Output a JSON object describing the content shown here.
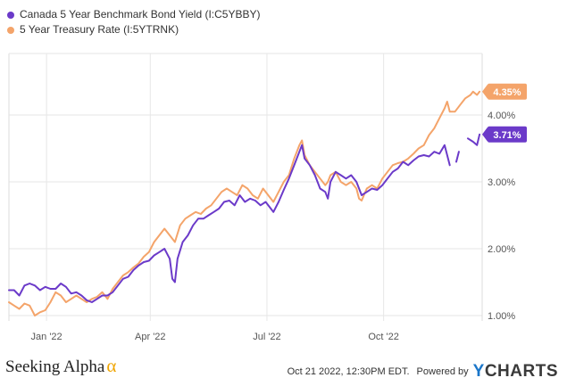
{
  "chart_data": {
    "type": "line",
    "x_ticks": [
      "Jan '22",
      "Apr '22",
      "Jul '22",
      "Oct '22"
    ],
    "y_ticks": [
      "1.00%",
      "2.00%",
      "3.00%",
      "4.00%"
    ],
    "ylim": [
      0.92,
      4.92
    ],
    "grid": true,
    "legend_position": "top-left",
    "series": [
      {
        "name": "Canada 5 Year Benchmark Bond Yield (I:C5YBBY)",
        "color": "#6b3ac9",
        "end_label": "3.71%",
        "points": [
          [
            0,
            1.38
          ],
          [
            4,
            1.38
          ],
          [
            8,
            1.3
          ],
          [
            12,
            1.45
          ],
          [
            16,
            1.48
          ],
          [
            20,
            1.45
          ],
          [
            24,
            1.38
          ],
          [
            28,
            1.43
          ],
          [
            32,
            1.4
          ],
          [
            36,
            1.4
          ],
          [
            40,
            1.48
          ],
          [
            44,
            1.43
          ],
          [
            48,
            1.33
          ],
          [
            52,
            1.35
          ],
          [
            56,
            1.3
          ],
          [
            60,
            1.23
          ],
          [
            64,
            1.2
          ],
          [
            68,
            1.25
          ],
          [
            72,
            1.3
          ],
          [
            76,
            1.3
          ],
          [
            80,
            1.35
          ],
          [
            84,
            1.45
          ],
          [
            88,
            1.55
          ],
          [
            92,
            1.58
          ],
          [
            96,
            1.68
          ],
          [
            100,
            1.75
          ],
          [
            104,
            1.8
          ],
          [
            108,
            1.82
          ],
          [
            112,
            1.9
          ],
          [
            116,
            1.95
          ],
          [
            120,
            2.0
          ],
          [
            124,
            1.85
          ],
          [
            126,
            1.55
          ],
          [
            128,
            1.5
          ],
          [
            130,
            1.85
          ],
          [
            134,
            2.1
          ],
          [
            138,
            2.2
          ],
          [
            142,
            2.35
          ],
          [
            146,
            2.45
          ],
          [
            150,
            2.45
          ],
          [
            154,
            2.5
          ],
          [
            158,
            2.55
          ],
          [
            162,
            2.6
          ],
          [
            166,
            2.7
          ],
          [
            170,
            2.72
          ],
          [
            174,
            2.65
          ],
          [
            178,
            2.8
          ],
          [
            182,
            2.7
          ],
          [
            186,
            2.75
          ],
          [
            190,
            2.72
          ],
          [
            194,
            2.65
          ],
          [
            198,
            2.7
          ],
          [
            202,
            2.6
          ],
          [
            204,
            2.55
          ],
          [
            208,
            2.7
          ],
          [
            212,
            2.88
          ],
          [
            216,
            3.05
          ],
          [
            220,
            3.25
          ],
          [
            224,
            3.45
          ],
          [
            226,
            3.55
          ],
          [
            228,
            3.35
          ],
          [
            232,
            3.25
          ],
          [
            236,
            3.1
          ],
          [
            240,
            2.9
          ],
          [
            244,
            2.85
          ],
          [
            246,
            2.75
          ],
          [
            248,
            3.0
          ],
          [
            252,
            3.15
          ],
          [
            256,
            3.1
          ],
          [
            260,
            3.05
          ],
          [
            264,
            3.1
          ],
          [
            268,
            3.0
          ],
          [
            270,
            2.9
          ],
          [
            272,
            2.8
          ],
          [
            276,
            2.85
          ],
          [
            280,
            2.9
          ],
          [
            284,
            2.88
          ],
          [
            288,
            2.95
          ],
          [
            292,
            3.05
          ],
          [
            296,
            3.15
          ],
          [
            300,
            3.2
          ],
          [
            304,
            3.3
          ],
          [
            308,
            3.25
          ],
          [
            312,
            3.32
          ],
          [
            316,
            3.38
          ],
          [
            320,
            3.4
          ],
          [
            324,
            3.38
          ],
          [
            328,
            3.45
          ],
          [
            332,
            3.42
          ],
          [
            336,
            3.55
          ],
          [
            338,
            3.4
          ],
          [
            340,
            3.25
          ],
          [
            341,
            null
          ],
          [
            345,
            3.3
          ],
          [
            347,
            3.45
          ],
          [
            349,
            null
          ],
          [
            354,
            3.65
          ],
          [
            358,
            3.6
          ],
          [
            361,
            3.55
          ],
          [
            363,
            3.71
          ]
        ]
      },
      {
        "name": "5 Year Treasury Rate (I:5YTRNK)",
        "color": "#f4a46a",
        "end_label": "4.35%",
        "points": [
          [
            0,
            1.2
          ],
          [
            4,
            1.15
          ],
          [
            8,
            1.1
          ],
          [
            12,
            1.18
          ],
          [
            16,
            1.15
          ],
          [
            20,
            1.0
          ],
          [
            24,
            1.05
          ],
          [
            28,
            1.08
          ],
          [
            32,
            1.2
          ],
          [
            36,
            1.35
          ],
          [
            40,
            1.3
          ],
          [
            44,
            1.2
          ],
          [
            48,
            1.25
          ],
          [
            52,
            1.3
          ],
          [
            56,
            1.25
          ],
          [
            60,
            1.2
          ],
          [
            64,
            1.25
          ],
          [
            68,
            1.28
          ],
          [
            72,
            1.35
          ],
          [
            76,
            1.25
          ],
          [
            80,
            1.4
          ],
          [
            84,
            1.5
          ],
          [
            88,
            1.6
          ],
          [
            92,
            1.65
          ],
          [
            96,
            1.72
          ],
          [
            100,
            1.78
          ],
          [
            104,
            1.88
          ],
          [
            108,
            1.95
          ],
          [
            112,
            2.1
          ],
          [
            116,
            2.2
          ],
          [
            120,
            2.3
          ],
          [
            124,
            2.2
          ],
          [
            128,
            2.1
          ],
          [
            132,
            2.35
          ],
          [
            136,
            2.45
          ],
          [
            140,
            2.5
          ],
          [
            144,
            2.55
          ],
          [
            148,
            2.52
          ],
          [
            152,
            2.6
          ],
          [
            156,
            2.65
          ],
          [
            160,
            2.75
          ],
          [
            164,
            2.85
          ],
          [
            168,
            2.9
          ],
          [
            172,
            2.85
          ],
          [
            176,
            2.8
          ],
          [
            180,
            2.95
          ],
          [
            184,
            2.9
          ],
          [
            188,
            2.8
          ],
          [
            192,
            2.75
          ],
          [
            196,
            2.9
          ],
          [
            200,
            2.8
          ],
          [
            204,
            2.7
          ],
          [
            208,
            2.85
          ],
          [
            212,
            3.0
          ],
          [
            216,
            3.1
          ],
          [
            220,
            3.35
          ],
          [
            224,
            3.55
          ],
          [
            226,
            3.62
          ],
          [
            228,
            3.4
          ],
          [
            232,
            3.25
          ],
          [
            236,
            3.15
          ],
          [
            240,
            3.05
          ],
          [
            244,
            2.95
          ],
          [
            246,
            3.0
          ],
          [
            248,
            3.1
          ],
          [
            252,
            3.15
          ],
          [
            256,
            3.0
          ],
          [
            260,
            2.95
          ],
          [
            264,
            3.0
          ],
          [
            268,
            2.9
          ],
          [
            270,
            2.75
          ],
          [
            272,
            2.72
          ],
          [
            276,
            2.9
          ],
          [
            280,
            2.95
          ],
          [
            284,
            2.9
          ],
          [
            288,
            3.05
          ],
          [
            292,
            3.15
          ],
          [
            296,
            3.25
          ],
          [
            300,
            3.28
          ],
          [
            304,
            3.3
          ],
          [
            308,
            3.35
          ],
          [
            312,
            3.42
          ],
          [
            316,
            3.5
          ],
          [
            320,
            3.55
          ],
          [
            324,
            3.7
          ],
          [
            328,
            3.8
          ],
          [
            332,
            3.95
          ],
          [
            336,
            4.1
          ],
          [
            338,
            4.2
          ],
          [
            340,
            4.05
          ],
          [
            344,
            4.05
          ],
          [
            348,
            4.15
          ],
          [
            352,
            4.25
          ],
          [
            356,
            4.3
          ],
          [
            358,
            4.35
          ],
          [
            361,
            4.3
          ],
          [
            363,
            4.35
          ]
        ]
      }
    ]
  },
  "footer": {
    "brand": "Seeking Alpha",
    "brand_symbol": "α",
    "timestamp": "Oct 21 2022, 12:30PM EDT.",
    "powered_by": "Powered by",
    "provider_mark": "Y",
    "provider_rest": "CHARTS"
  }
}
